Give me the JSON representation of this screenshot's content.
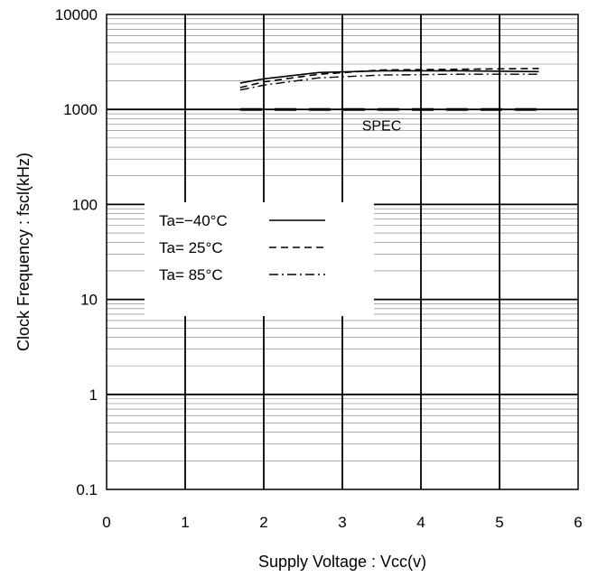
{
  "chart_data": {
    "type": "line",
    "title": "",
    "xlabel": "Supply Voltage : Vcc(v)",
    "ylabel": "Clock Frequency : fscl(kHz)",
    "xlim": [
      0,
      6
    ],
    "ylim": [
      0.1,
      10000
    ],
    "yscale": "log",
    "grid": true,
    "x_ticks": [
      "0",
      "1",
      "2",
      "3",
      "4",
      "5",
      "6"
    ],
    "y_ticks": [
      "0.1",
      "1",
      "10",
      "100",
      "1000",
      "10000"
    ],
    "legend_position": "center-left",
    "series": [
      {
        "name": "Ta=−40°C",
        "style": "solid",
        "x": [
          1.7,
          2.0,
          2.7,
          3.5,
          4.5,
          5.5
        ],
        "y": [
          1900,
          2100,
          2450,
          2550,
          2550,
          2500
        ]
      },
      {
        "name": "Ta= 25°C",
        "style": "dashed",
        "x": [
          1.7,
          2.0,
          2.7,
          3.5,
          4.5,
          5.5
        ],
        "y": [
          1700,
          1950,
          2350,
          2600,
          2650,
          2700
        ]
      },
      {
        "name": "Ta= 85°C",
        "style": "dashdot",
        "x": [
          1.7,
          2.0,
          2.7,
          3.5,
          4.5,
          5.5
        ],
        "y": [
          1600,
          1800,
          2150,
          2300,
          2350,
          2350
        ]
      },
      {
        "name": "SPEC",
        "style": "spec",
        "x": [
          1.7,
          5.5
        ],
        "y": [
          1000,
          1000
        ]
      }
    ],
    "annotations": [
      {
        "text": "SPEC",
        "x": 3.5,
        "y": 600
      }
    ]
  }
}
